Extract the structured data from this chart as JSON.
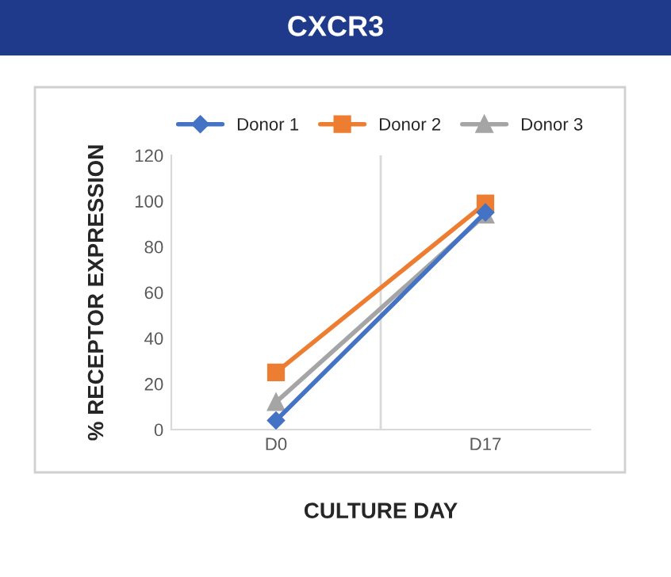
{
  "chart_data": {
    "type": "line",
    "title": "CXCR3",
    "xlabel": "CULTURE DAY",
    "ylabel": "% RECEPTOR EXPRESSION",
    "categories": [
      "D0",
      "D17"
    ],
    "series": [
      {
        "name": "Donor 1",
        "color": "#4472c4",
        "marker": "diamond",
        "values": [
          4,
          95
        ]
      },
      {
        "name": "Donor 2",
        "color": "#ed7d31",
        "marker": "square",
        "values": [
          25,
          99
        ]
      },
      {
        "name": "Donor 3",
        "color": "#a5a5a5",
        "marker": "triangle",
        "values": [
          12,
          94
        ]
      }
    ],
    "ylim": [
      0,
      120
    ],
    "yticks": [
      0,
      20,
      40,
      60,
      80,
      100,
      120
    ],
    "grid": "x",
    "legend": "top",
    "line_style": "solid"
  }
}
